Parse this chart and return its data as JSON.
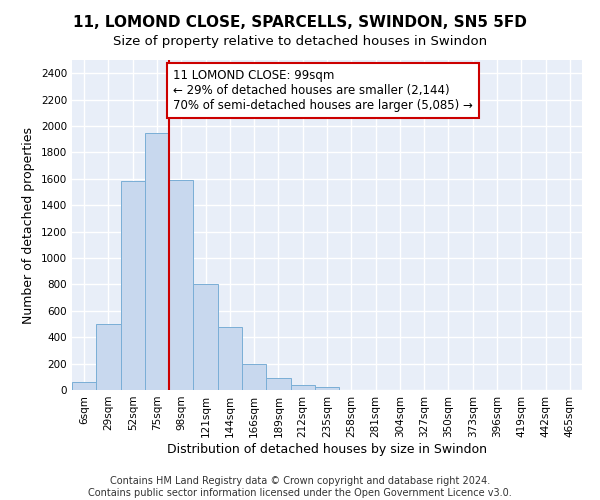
{
  "title": "11, LOMOND CLOSE, SPARCELLS, SWINDON, SN5 5FD",
  "subtitle": "Size of property relative to detached houses in Swindon",
  "xlabel": "Distribution of detached houses by size in Swindon",
  "ylabel": "Number of detached properties",
  "categories": [
    "6sqm",
    "29sqm",
    "52sqm",
    "75sqm",
    "98sqm",
    "121sqm",
    "144sqm",
    "166sqm",
    "189sqm",
    "212sqm",
    "235sqm",
    "258sqm",
    "281sqm",
    "304sqm",
    "327sqm",
    "350sqm",
    "373sqm",
    "396sqm",
    "419sqm",
    "442sqm",
    "465sqm"
  ],
  "values": [
    60,
    500,
    1580,
    1950,
    1590,
    800,
    480,
    195,
    90,
    35,
    25,
    0,
    0,
    0,
    0,
    0,
    0,
    0,
    0,
    0,
    0
  ],
  "bar_color": "#c8d8ee",
  "bar_edgecolor": "#7aaed6",
  "vline_index": 4,
  "vline_color": "#cc0000",
  "annotation_text": "11 LOMOND CLOSE: 99sqm\n← 29% of detached houses are smaller (2,144)\n70% of semi-detached houses are larger (5,085) →",
  "annotation_box_color": "#ffffff",
  "annotation_box_edgecolor": "#cc0000",
  "ylim": [
    0,
    2500
  ],
  "yticks": [
    0,
    200,
    400,
    600,
    800,
    1000,
    1200,
    1400,
    1600,
    1800,
    2000,
    2200,
    2400
  ],
  "footer1": "Contains HM Land Registry data © Crown copyright and database right 2024.",
  "footer2": "Contains public sector information licensed under the Open Government Licence v3.0.",
  "fig_bg_color": "#ffffff",
  "plot_bg_color": "#e8eef8",
  "grid_color": "#ffffff",
  "title_fontsize": 11,
  "subtitle_fontsize": 9.5,
  "axis_label_fontsize": 9,
  "tick_fontsize": 7.5,
  "footer_fontsize": 7
}
